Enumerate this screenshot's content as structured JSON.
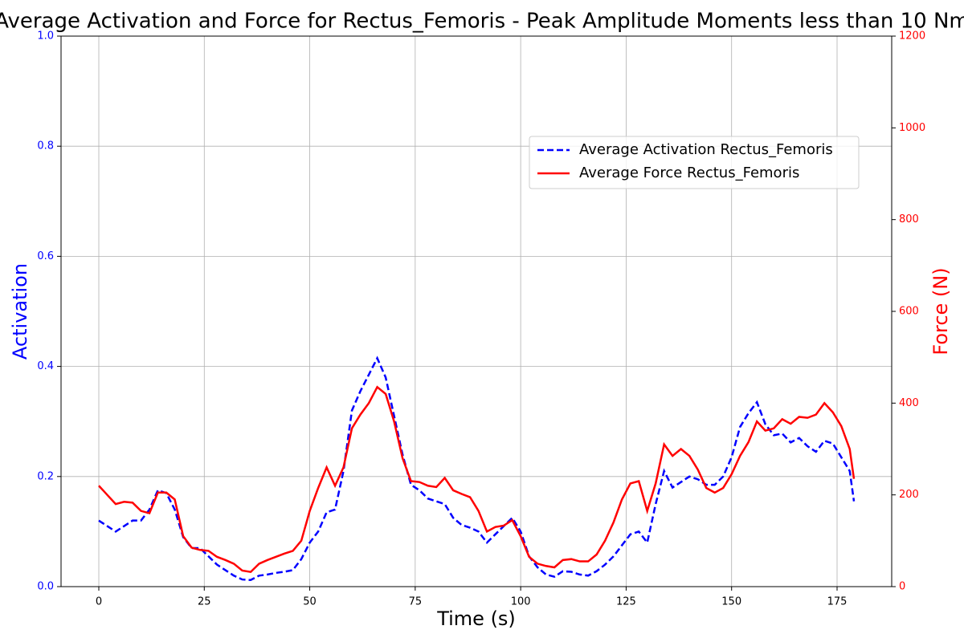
{
  "chart_data": {
    "type": "line",
    "title": "Average Activation and Force for Rectus_Femoris - Peak Amplitude Moments less than 10 Nm",
    "x_label": "Time (s)",
    "y_label": "Activation",
    "y2_label": "Force (N)",
    "x": [
      0,
      2,
      4,
      6,
      8,
      10,
      12,
      14,
      16,
      18,
      20,
      22,
      24,
      26,
      28,
      30,
      32,
      34,
      36,
      38,
      40,
      42,
      44,
      46,
      48,
      50,
      52,
      54,
      56,
      58,
      60,
      62,
      64,
      66,
      68,
      70,
      72,
      74,
      76,
      78,
      80,
      82,
      84,
      86,
      88,
      90,
      92,
      94,
      96,
      98,
      100,
      102,
      104,
      106,
      108,
      110,
      112,
      114,
      116,
      118,
      120,
      122,
      124,
      126,
      128,
      130,
      132,
      134,
      136,
      138,
      140,
      142,
      144,
      146,
      148,
      150,
      152,
      154,
      156,
      158,
      160,
      162,
      164,
      166,
      168,
      170,
      172,
      174,
      176,
      178,
      179
    ],
    "series": [
      {
        "name": "Average Activation Rectus_Femoris",
        "color": "#0000ff",
        "dashed": true,
        "axis": "y",
        "values": [
          0.12,
          0.11,
          0.1,
          0.11,
          0.12,
          0.12,
          0.14,
          0.175,
          0.17,
          0.14,
          0.09,
          0.07,
          0.07,
          0.055,
          0.04,
          0.03,
          0.02,
          0.013,
          0.012,
          0.02,
          0.022,
          0.025,
          0.027,
          0.03,
          0.05,
          0.08,
          0.1,
          0.135,
          0.14,
          0.21,
          0.32,
          0.355,
          0.385,
          0.415,
          0.38,
          0.31,
          0.24,
          0.185,
          0.175,
          0.16,
          0.155,
          0.15,
          0.125,
          0.112,
          0.107,
          0.1,
          0.08,
          0.095,
          0.11,
          0.125,
          0.1,
          0.055,
          0.035,
          0.022,
          0.018,
          0.028,
          0.027,
          0.022,
          0.02,
          0.028,
          0.04,
          0.055,
          0.075,
          0.095,
          0.1,
          0.08,
          0.15,
          0.21,
          0.18,
          0.19,
          0.2,
          0.195,
          0.185,
          0.185,
          0.2,
          0.235,
          0.29,
          0.315,
          0.335,
          0.295,
          0.275,
          0.278,
          0.262,
          0.27,
          0.255,
          0.245,
          0.265,
          0.26,
          0.235,
          0.21,
          0.155
        ]
      },
      {
        "name": "Average Force Rectus_Femoris",
        "color": "#ff0000",
        "dashed": false,
        "axis": "y2",
        "values": [
          220,
          200,
          180,
          185,
          183,
          165,
          160,
          205,
          205,
          190,
          110,
          85,
          80,
          78,
          65,
          58,
          50,
          35,
          32,
          50,
          58,
          65,
          72,
          78,
          100,
          165,
          215,
          260,
          220,
          260,
          345,
          375,
          400,
          435,
          420,
          360,
          280,
          230,
          228,
          220,
          217,
          237,
          210,
          202,
          195,
          165,
          120,
          130,
          133,
          145,
          110,
          65,
          50,
          45,
          42,
          58,
          60,
          55,
          55,
          70,
          100,
          140,
          190,
          225,
          230,
          165,
          225,
          310,
          285,
          300,
          285,
          255,
          215,
          205,
          215,
          245,
          285,
          315,
          360,
          340,
          345,
          365,
          355,
          370,
          368,
          375,
          400,
          380,
          350,
          300,
          235
        ]
      }
    ],
    "xlim": [
      -8.95,
      187.95
    ],
    "xticks": [
      0,
      25,
      50,
      75,
      100,
      125,
      150,
      175
    ],
    "ylim": [
      0,
      1
    ],
    "yticks": [
      {
        "value": 0,
        "label": "0.0"
      },
      0.2,
      0.4,
      0.6,
      0.8,
      {
        "value": 1,
        "label": "1.0"
      }
    ],
    "y2lim": [
      0,
      1200
    ],
    "y2ticks": [
      0,
      200,
      400,
      600,
      800,
      1000,
      1200
    ],
    "grid": true,
    "legend": "upper right",
    "y_color": "#0000ff",
    "y2_color": "#ff0000"
  }
}
